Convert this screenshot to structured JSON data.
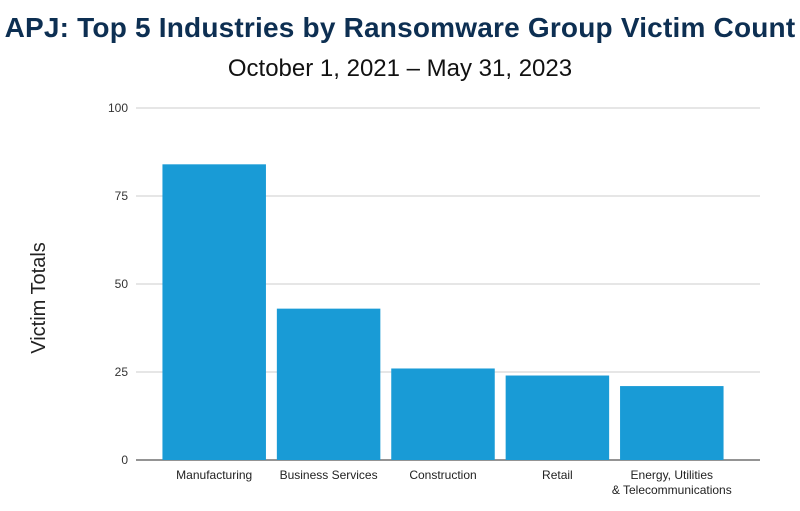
{
  "chart_data": {
    "type": "bar",
    "title": "APJ: Top 5 Industries by Ransomware Group Victim Count",
    "subtitle": "October 1, 2021 – May 31, 2023",
    "xlabel": "",
    "ylabel": "Victim Totals",
    "ylim": [
      0,
      100
    ],
    "yticks": [
      0,
      25,
      50,
      75,
      100
    ],
    "grid": true,
    "categories": [
      [
        "Manufacturing"
      ],
      [
        "Business Services"
      ],
      [
        "Construction"
      ],
      [
        "Retail"
      ],
      [
        "Energy, Utilities",
        "& Telecommunications"
      ]
    ],
    "values": [
      84,
      43,
      26,
      24,
      21
    ],
    "bar_color": "#199bd6",
    "grid_color": "#cccccc",
    "title_color": "#0d2f52"
  }
}
